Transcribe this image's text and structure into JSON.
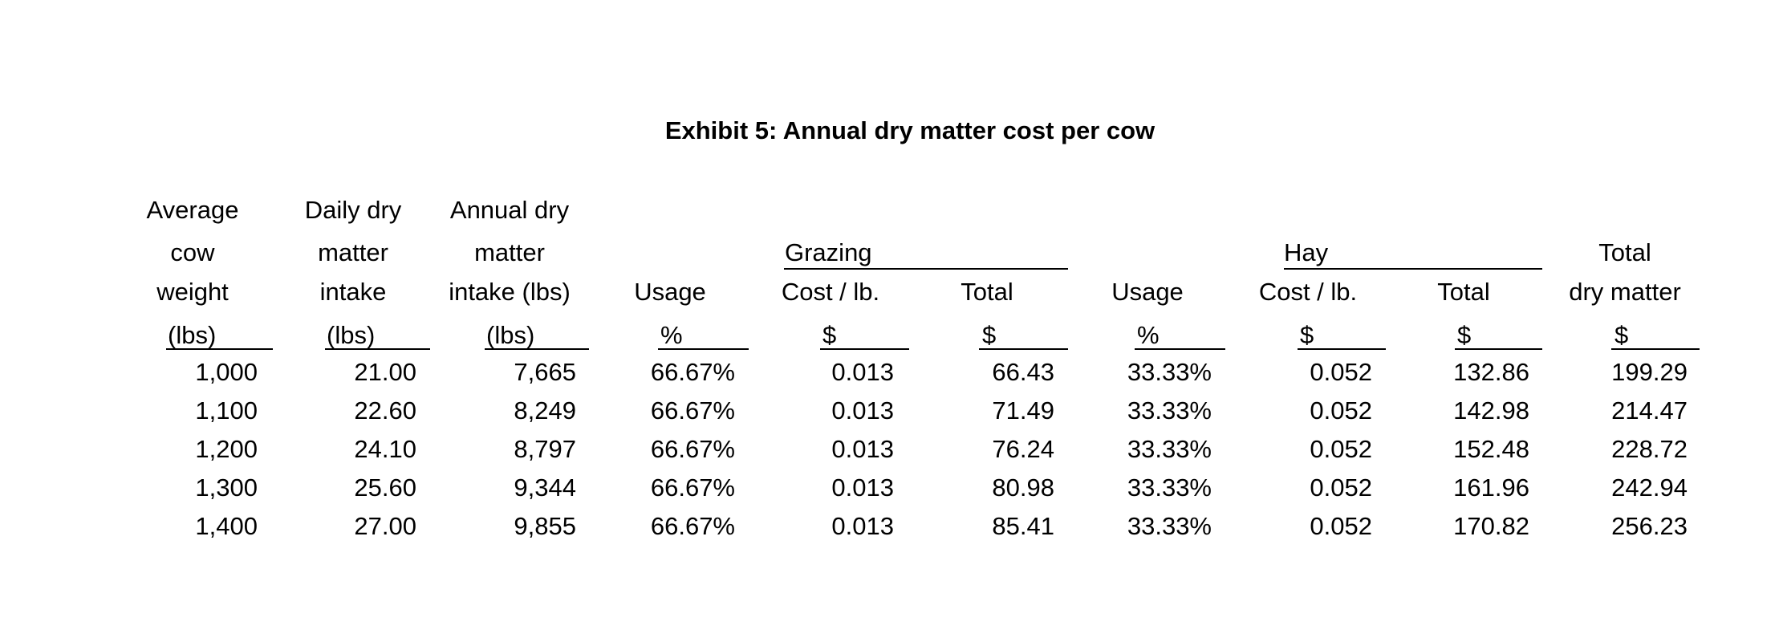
{
  "title": "Exhibit 5: Annual dry matter cost per cow",
  "headers": {
    "avg_weight": [
      "Average",
      "cow",
      "weight",
      "(lbs)"
    ],
    "daily_dm": [
      "Daily dry",
      "matter",
      "intake",
      "(lbs)"
    ],
    "annual_dm": [
      "Annual dry",
      "matter",
      "intake (lbs)",
      "(lbs)"
    ],
    "grazing_group": "Grazing",
    "hay_group": "Hay",
    "usage": "Usage",
    "cost_per_lb": "Cost / lb.",
    "total": "Total",
    "total_dm": [
      "Total",
      "dry matter"
    ],
    "unit_pct": "%",
    "unit_dollar": "$"
  },
  "rows": [
    [
      "1,000",
      "21.00",
      "7,665",
      "66.67%",
      "0.013",
      "66.43",
      "33.33%",
      "0.052",
      "132.86",
      "199.29"
    ],
    [
      "1,100",
      "22.60",
      "8,249",
      "66.67%",
      "0.013",
      "71.49",
      "33.33%",
      "0.052",
      "142.98",
      "214.47"
    ],
    [
      "1,200",
      "24.10",
      "8,797",
      "66.67%",
      "0.013",
      "76.24",
      "33.33%",
      "0.052",
      "152.48",
      "228.72"
    ],
    [
      "1,300",
      "25.60",
      "9,344",
      "66.67%",
      "0.013",
      "80.98",
      "33.33%",
      "0.052",
      "161.96",
      "242.94"
    ],
    [
      "1,400",
      "27.00",
      "9,855",
      "66.67%",
      "0.013",
      "85.41",
      "33.33%",
      "0.052",
      "170.82",
      "256.23"
    ]
  ]
}
